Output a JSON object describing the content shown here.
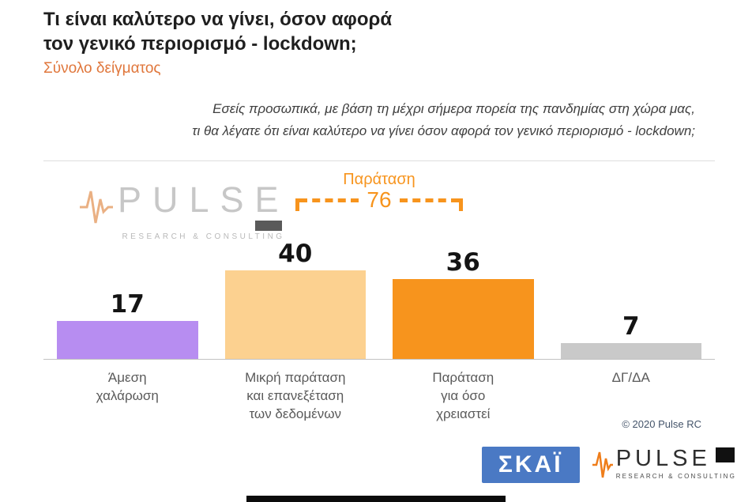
{
  "header": {
    "title_line1": "Τι είναι καλύτερο να γίνει, όσον αφορά",
    "title_line2": "τον γενικό περιορισμό - lockdown;",
    "subtitle": "Σύνολο δείγματος"
  },
  "question": {
    "line1": "Εσείς προσωπικά, με βάση τη μέχρι σήμερα πορεία της πανδημίας στη χώρα μας,",
    "line2": "τι θα λέγατε ότι είναι καλύτερο να γίνει όσον αφορά τον γενικό περιορισμό - lockdown;"
  },
  "chart_data": {
    "type": "bar",
    "title": "Τι είναι καλύτερο να γίνει, όσον αφορά τον γενικό περιορισμό - lockdown;",
    "subtitle": "Σύνολο δείγματος",
    "categories": [
      "Άμεση χαλάρωση",
      "Μικρή παράταση και επανεξέταση των δεδομένων",
      "Παράταση για όσο χρειαστεί",
      "ΔΓ/ΔΑ"
    ],
    "tick_labels": [
      "Άμεση\nχαλάρωση",
      "Μικρή παράταση\nκαι επανεξέταση\nτων δεδομένων",
      "Παράταση\nγια όσο\nχρειαστεί",
      "ΔΓ/ΔΑ"
    ],
    "values": [
      17,
      40,
      36,
      7
    ],
    "bar_colors": [
      "#b78df1",
      "#fcd190",
      "#f7941d",
      "#c9c9c9"
    ],
    "annotation": {
      "label": "Παράταση",
      "value": 76,
      "covers_categories": [
        1,
        2
      ],
      "color": "#f7941d"
    },
    "legend": false
  },
  "watermark": {
    "name": "PULSE",
    "tagline": "RESEARCH & CONSULTING"
  },
  "footer": {
    "copyright": "© 2020 Pulse RC",
    "skai_logo": "ΣΚΑΪ",
    "pulse_logo_name": "PULSE",
    "pulse_logo_tagline": "RESEARCH & CONSULTING"
  }
}
